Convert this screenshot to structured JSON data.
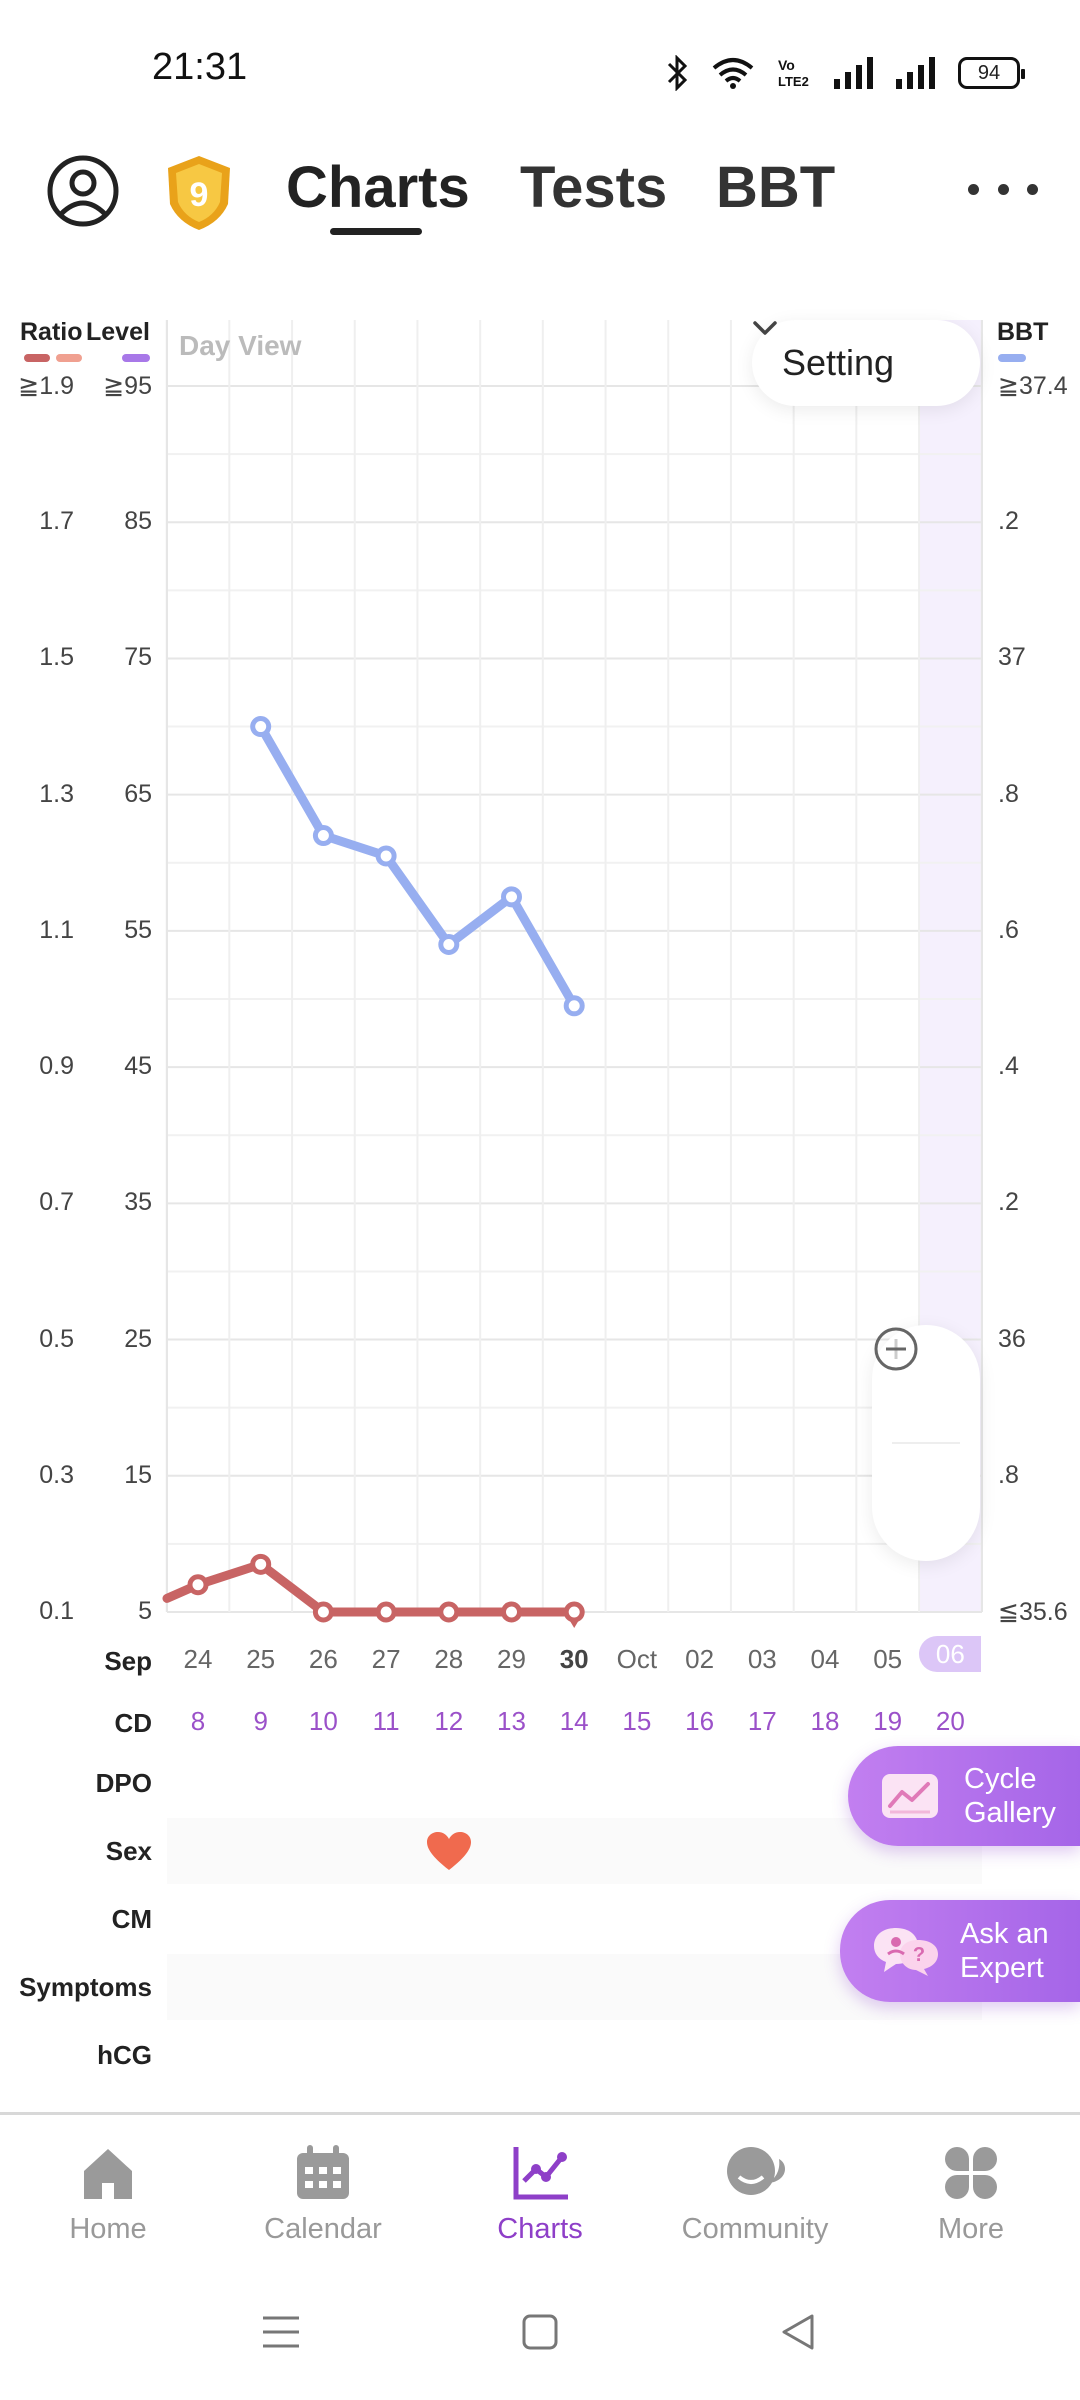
{
  "status_bar": {
    "time": "21:31",
    "battery": "94"
  },
  "header": {
    "badge_level": "9",
    "tabs": [
      {
        "label": "Charts",
        "active": true
      },
      {
        "label": "Tests",
        "active": false
      },
      {
        "label": "BBT",
        "active": false
      }
    ]
  },
  "chart": {
    "legend": {
      "ratio": "Ratio",
      "level": "Level",
      "bbt": "BBT"
    },
    "view_label": "Day View",
    "setting_label": "Setting",
    "ratio_ticks": [
      "≧1.9",
      "1.7",
      "1.5",
      "1.3",
      "1.1",
      "0.9",
      "0.7",
      "0.5",
      "0.3",
      "0.1"
    ],
    "level_ticks": [
      "≧95",
      "85",
      "75",
      "65",
      "55",
      "45",
      "35",
      "25",
      "15",
      "5"
    ],
    "bbt_ticks": [
      "≧37.4",
      ".2",
      "37",
      ".8",
      ".6",
      ".4",
      ".2",
      "36",
      ".8",
      "≦35.6"
    ],
    "colors": {
      "bbt": "#97aef0",
      "ratio": "#c86464",
      "ratio_light": "#f0a090",
      "level": "#a878e8",
      "accent": "#8e3fc8"
    }
  },
  "chart_data": {
    "type": "line",
    "x": [
      "Sep 24",
      "Sep 25",
      "Sep 26",
      "Sep 27",
      "Sep 28",
      "Sep 29",
      "Sep 30"
    ],
    "series": [
      {
        "name": "BBT",
        "axis": "right",
        "values": [
          null,
          36.9,
          36.74,
          36.71,
          36.58,
          36.65,
          36.49
        ]
      },
      {
        "name": "Ratio",
        "axis": "left",
        "values": [
          0.14,
          0.17,
          0.1,
          0.1,
          0.1,
          0.1,
          0.1
        ]
      }
    ],
    "left_axis": {
      "label": "Ratio",
      "range": [
        0.1,
        1.9
      ]
    },
    "level_axis": {
      "label": "Level",
      "range": [
        5,
        95
      ]
    },
    "right_axis": {
      "label": "BBT",
      "range": [
        35.6,
        37.4
      ]
    },
    "grid": true,
    "leading_value": 0.12
  },
  "dates": {
    "month": "Sep",
    "days": [
      {
        "date": "24",
        "cd": "8"
      },
      {
        "date": "25",
        "cd": "9"
      },
      {
        "date": "26",
        "cd": "10"
      },
      {
        "date": "27",
        "cd": "11"
      },
      {
        "date": "28",
        "cd": "12"
      },
      {
        "date": "29",
        "cd": "13"
      },
      {
        "date": "30",
        "cd": "14",
        "bold": true
      },
      {
        "date": "Oct",
        "cd": "15"
      },
      {
        "date": "02",
        "cd": "16"
      },
      {
        "date": "03",
        "cd": "17"
      },
      {
        "date": "04",
        "cd": "18"
      },
      {
        "date": "05",
        "cd": "19"
      },
      {
        "date": "06",
        "cd": "20",
        "today": true
      }
    ]
  },
  "rows": {
    "month": "Sep",
    "cd": "CD",
    "dpo": "DPO",
    "sex": "Sex",
    "cm": "CM",
    "symptoms": "Symptoms",
    "hcg": "hCG",
    "sex_marker_day": 4
  },
  "fabs": {
    "cycle_gallery": [
      "Cycle",
      "Gallery"
    ],
    "ask_expert": [
      "Ask an",
      "Expert"
    ]
  },
  "bottom_nav": [
    {
      "label": "Home",
      "icon": "home-icon"
    },
    {
      "label": "Calendar",
      "icon": "calendar-icon"
    },
    {
      "label": "Charts",
      "icon": "charts-icon",
      "active": true
    },
    {
      "label": "Community",
      "icon": "community-icon"
    },
    {
      "label": "More",
      "icon": "more-icon"
    }
  ]
}
